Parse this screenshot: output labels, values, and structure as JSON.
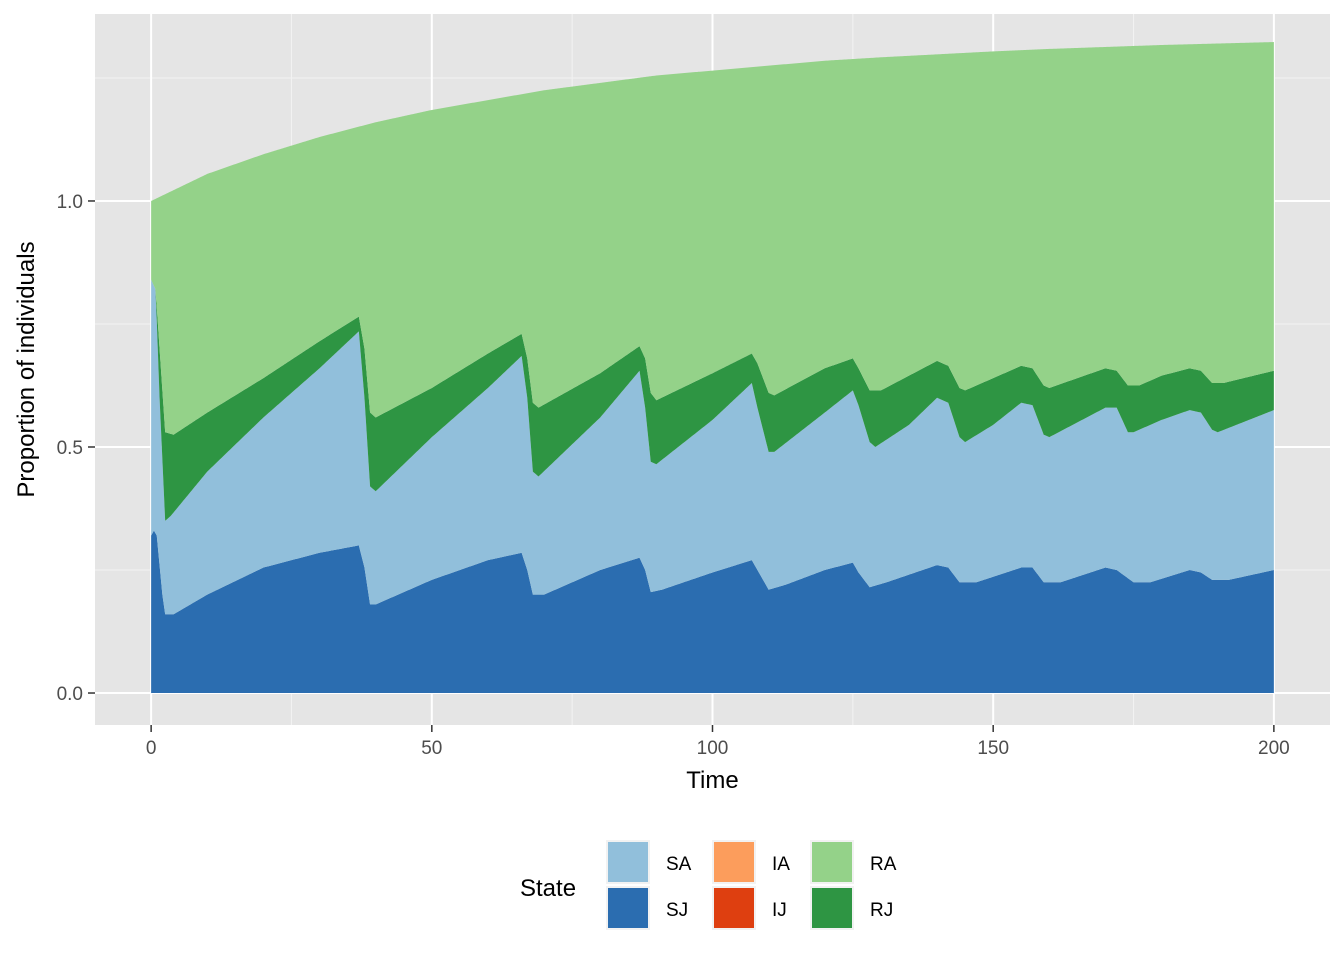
{
  "chart_data": {
    "type": "area",
    "stacked": true,
    "title": "",
    "xlabel": "Time",
    "ylabel": "Proportion of individuals",
    "xlim": [
      -10,
      210
    ],
    "ylim": [
      -0.065,
      1.38
    ],
    "x_ticks": [
      0,
      50,
      100,
      150,
      200
    ],
    "y_ticks": [
      0.0,
      0.5,
      1.0
    ],
    "x_tick_labels": [
      "0",
      "50",
      "100",
      "150",
      "200"
    ],
    "y_tick_labels": [
      "0.0",
      "0.5",
      "1.0"
    ],
    "grid": true,
    "legend": {
      "title": "State",
      "position": "bottom",
      "entries": [
        {
          "label": "SA",
          "color": "#91bfdb"
        },
        {
          "label": "SJ",
          "color": "#2b6db0"
        },
        {
          "label": "IA",
          "color": "#fc9d5c"
        },
        {
          "label": "IJ",
          "color": "#de3f10"
        },
        {
          "label": "RA",
          "color": "#94d289"
        },
        {
          "label": "RJ",
          "color": "#2e9543"
        }
      ]
    },
    "stack_order": [
      "SJ",
      "SA",
      "IJ",
      "IA",
      "RJ",
      "RA"
    ],
    "series_cumulative_tops": {
      "SJ": [
        [
          0,
          0.32
        ],
        [
          0.5,
          0.33
        ],
        [
          1,
          0.32
        ],
        [
          2,
          0.2
        ],
        [
          2.5,
          0.16
        ],
        [
          4,
          0.16
        ],
        [
          10,
          0.2
        ],
        [
          20,
          0.255
        ],
        [
          30,
          0.285
        ],
        [
          37,
          0.3
        ],
        [
          38,
          0.255
        ],
        [
          39,
          0.18
        ],
        [
          40,
          0.18
        ],
        [
          50,
          0.23
        ],
        [
          60,
          0.27
        ],
        [
          66,
          0.285
        ],
        [
          67,
          0.25
        ],
        [
          68,
          0.2
        ],
        [
          70,
          0.2
        ],
        [
          80,
          0.25
        ],
        [
          87,
          0.275
        ],
        [
          88,
          0.25
        ],
        [
          89,
          0.205
        ],
        [
          91,
          0.21
        ],
        [
          100,
          0.245
        ],
        [
          107,
          0.27
        ],
        [
          108,
          0.25
        ],
        [
          110,
          0.21
        ],
        [
          113,
          0.22
        ],
        [
          120,
          0.25
        ],
        [
          125,
          0.265
        ],
        [
          126,
          0.245
        ],
        [
          128,
          0.215
        ],
        [
          131,
          0.225
        ],
        [
          140,
          0.26
        ],
        [
          142,
          0.255
        ],
        [
          144,
          0.225
        ],
        [
          147,
          0.225
        ],
        [
          155,
          0.255
        ],
        [
          157,
          0.255
        ],
        [
          159,
          0.225
        ],
        [
          162,
          0.225
        ],
        [
          170,
          0.255
        ],
        [
          172,
          0.25
        ],
        [
          175,
          0.225
        ],
        [
          178,
          0.225
        ],
        [
          185,
          0.25
        ],
        [
          187,
          0.245
        ],
        [
          189,
          0.23
        ],
        [
          192,
          0.23
        ],
        [
          200,
          0.25
        ]
      ],
      "SA": [
        [
          0,
          0.84
        ],
        [
          0.8,
          0.82
        ],
        [
          1.5,
          0.6
        ],
        [
          2.5,
          0.35
        ],
        [
          3.5,
          0.36
        ],
        [
          10,
          0.45
        ],
        [
          20,
          0.56
        ],
        [
          30,
          0.66
        ],
        [
          37,
          0.735
        ],
        [
          38,
          0.6
        ],
        [
          39,
          0.42
        ],
        [
          40,
          0.41
        ],
        [
          50,
          0.52
        ],
        [
          60,
          0.62
        ],
        [
          66,
          0.685
        ],
        [
          67,
          0.6
        ],
        [
          68,
          0.45
        ],
        [
          69,
          0.44
        ],
        [
          80,
          0.56
        ],
        [
          87,
          0.655
        ],
        [
          88,
          0.58
        ],
        [
          89,
          0.47
        ],
        [
          90,
          0.465
        ],
        [
          100,
          0.555
        ],
        [
          107,
          0.63
        ],
        [
          108,
          0.58
        ],
        [
          110,
          0.49
        ],
        [
          111,
          0.49
        ],
        [
          120,
          0.57
        ],
        [
          125,
          0.615
        ],
        [
          126,
          0.585
        ],
        [
          128,
          0.51
        ],
        [
          129,
          0.5
        ],
        [
          135,
          0.545
        ],
        [
          140,
          0.6
        ],
        [
          142,
          0.59
        ],
        [
          144,
          0.52
        ],
        [
          145,
          0.51
        ],
        [
          150,
          0.545
        ],
        [
          155,
          0.59
        ],
        [
          157,
          0.585
        ],
        [
          159,
          0.525
        ],
        [
          160,
          0.52
        ],
        [
          165,
          0.55
        ],
        [
          170,
          0.58
        ],
        [
          172,
          0.58
        ],
        [
          174,
          0.53
        ],
        [
          175,
          0.53
        ],
        [
          180,
          0.555
        ],
        [
          185,
          0.575
        ],
        [
          187,
          0.57
        ],
        [
          189,
          0.535
        ],
        [
          190,
          0.53
        ],
        [
          200,
          0.575
        ]
      ],
      "RJ": [
        [
          0,
          0.84
        ],
        [
          0.8,
          0.82
        ],
        [
          1.5,
          0.7
        ],
        [
          2.5,
          0.53
        ],
        [
          4,
          0.525
        ],
        [
          10,
          0.57
        ],
        [
          20,
          0.64
        ],
        [
          30,
          0.715
        ],
        [
          37,
          0.765
        ],
        [
          38,
          0.7
        ],
        [
          39,
          0.57
        ],
        [
          40,
          0.56
        ],
        [
          50,
          0.62
        ],
        [
          60,
          0.69
        ],
        [
          66,
          0.73
        ],
        [
          67,
          0.68
        ],
        [
          68,
          0.59
        ],
        [
          69,
          0.58
        ],
        [
          80,
          0.65
        ],
        [
          87,
          0.705
        ],
        [
          88,
          0.68
        ],
        [
          89,
          0.61
        ],
        [
          90,
          0.595
        ],
        [
          100,
          0.65
        ],
        [
          107,
          0.69
        ],
        [
          108,
          0.67
        ],
        [
          110,
          0.61
        ],
        [
          111,
          0.605
        ],
        [
          120,
          0.66
        ],
        [
          125,
          0.68
        ],
        [
          126,
          0.66
        ],
        [
          128,
          0.615
        ],
        [
          130,
          0.615
        ],
        [
          135,
          0.645
        ],
        [
          140,
          0.675
        ],
        [
          142,
          0.665
        ],
        [
          144,
          0.62
        ],
        [
          145,
          0.615
        ],
        [
          150,
          0.64
        ],
        [
          155,
          0.665
        ],
        [
          157,
          0.66
        ],
        [
          159,
          0.625
        ],
        [
          160,
          0.62
        ],
        [
          165,
          0.64
        ],
        [
          170,
          0.66
        ],
        [
          172,
          0.655
        ],
        [
          174,
          0.625
        ],
        [
          176,
          0.625
        ],
        [
          180,
          0.645
        ],
        [
          185,
          0.66
        ],
        [
          187,
          0.655
        ],
        [
          189,
          0.63
        ],
        [
          191,
          0.63
        ],
        [
          200,
          0.655
        ]
      ],
      "RA": [
        [
          0,
          1.0
        ],
        [
          10,
          1.055
        ],
        [
          20,
          1.095
        ],
        [
          30,
          1.13
        ],
        [
          40,
          1.16
        ],
        [
          50,
          1.185
        ],
        [
          60,
          1.205
        ],
        [
          70,
          1.225
        ],
        [
          80,
          1.24
        ],
        [
          90,
          1.255
        ],
        [
          100,
          1.265
        ],
        [
          110,
          1.275
        ],
        [
          120,
          1.285
        ],
        [
          130,
          1.292
        ],
        [
          140,
          1.298
        ],
        [
          150,
          1.304
        ],
        [
          160,
          1.309
        ],
        [
          170,
          1.313
        ],
        [
          180,
          1.317
        ],
        [
          190,
          1.32
        ],
        [
          200,
          1.323
        ]
      ]
    }
  }
}
